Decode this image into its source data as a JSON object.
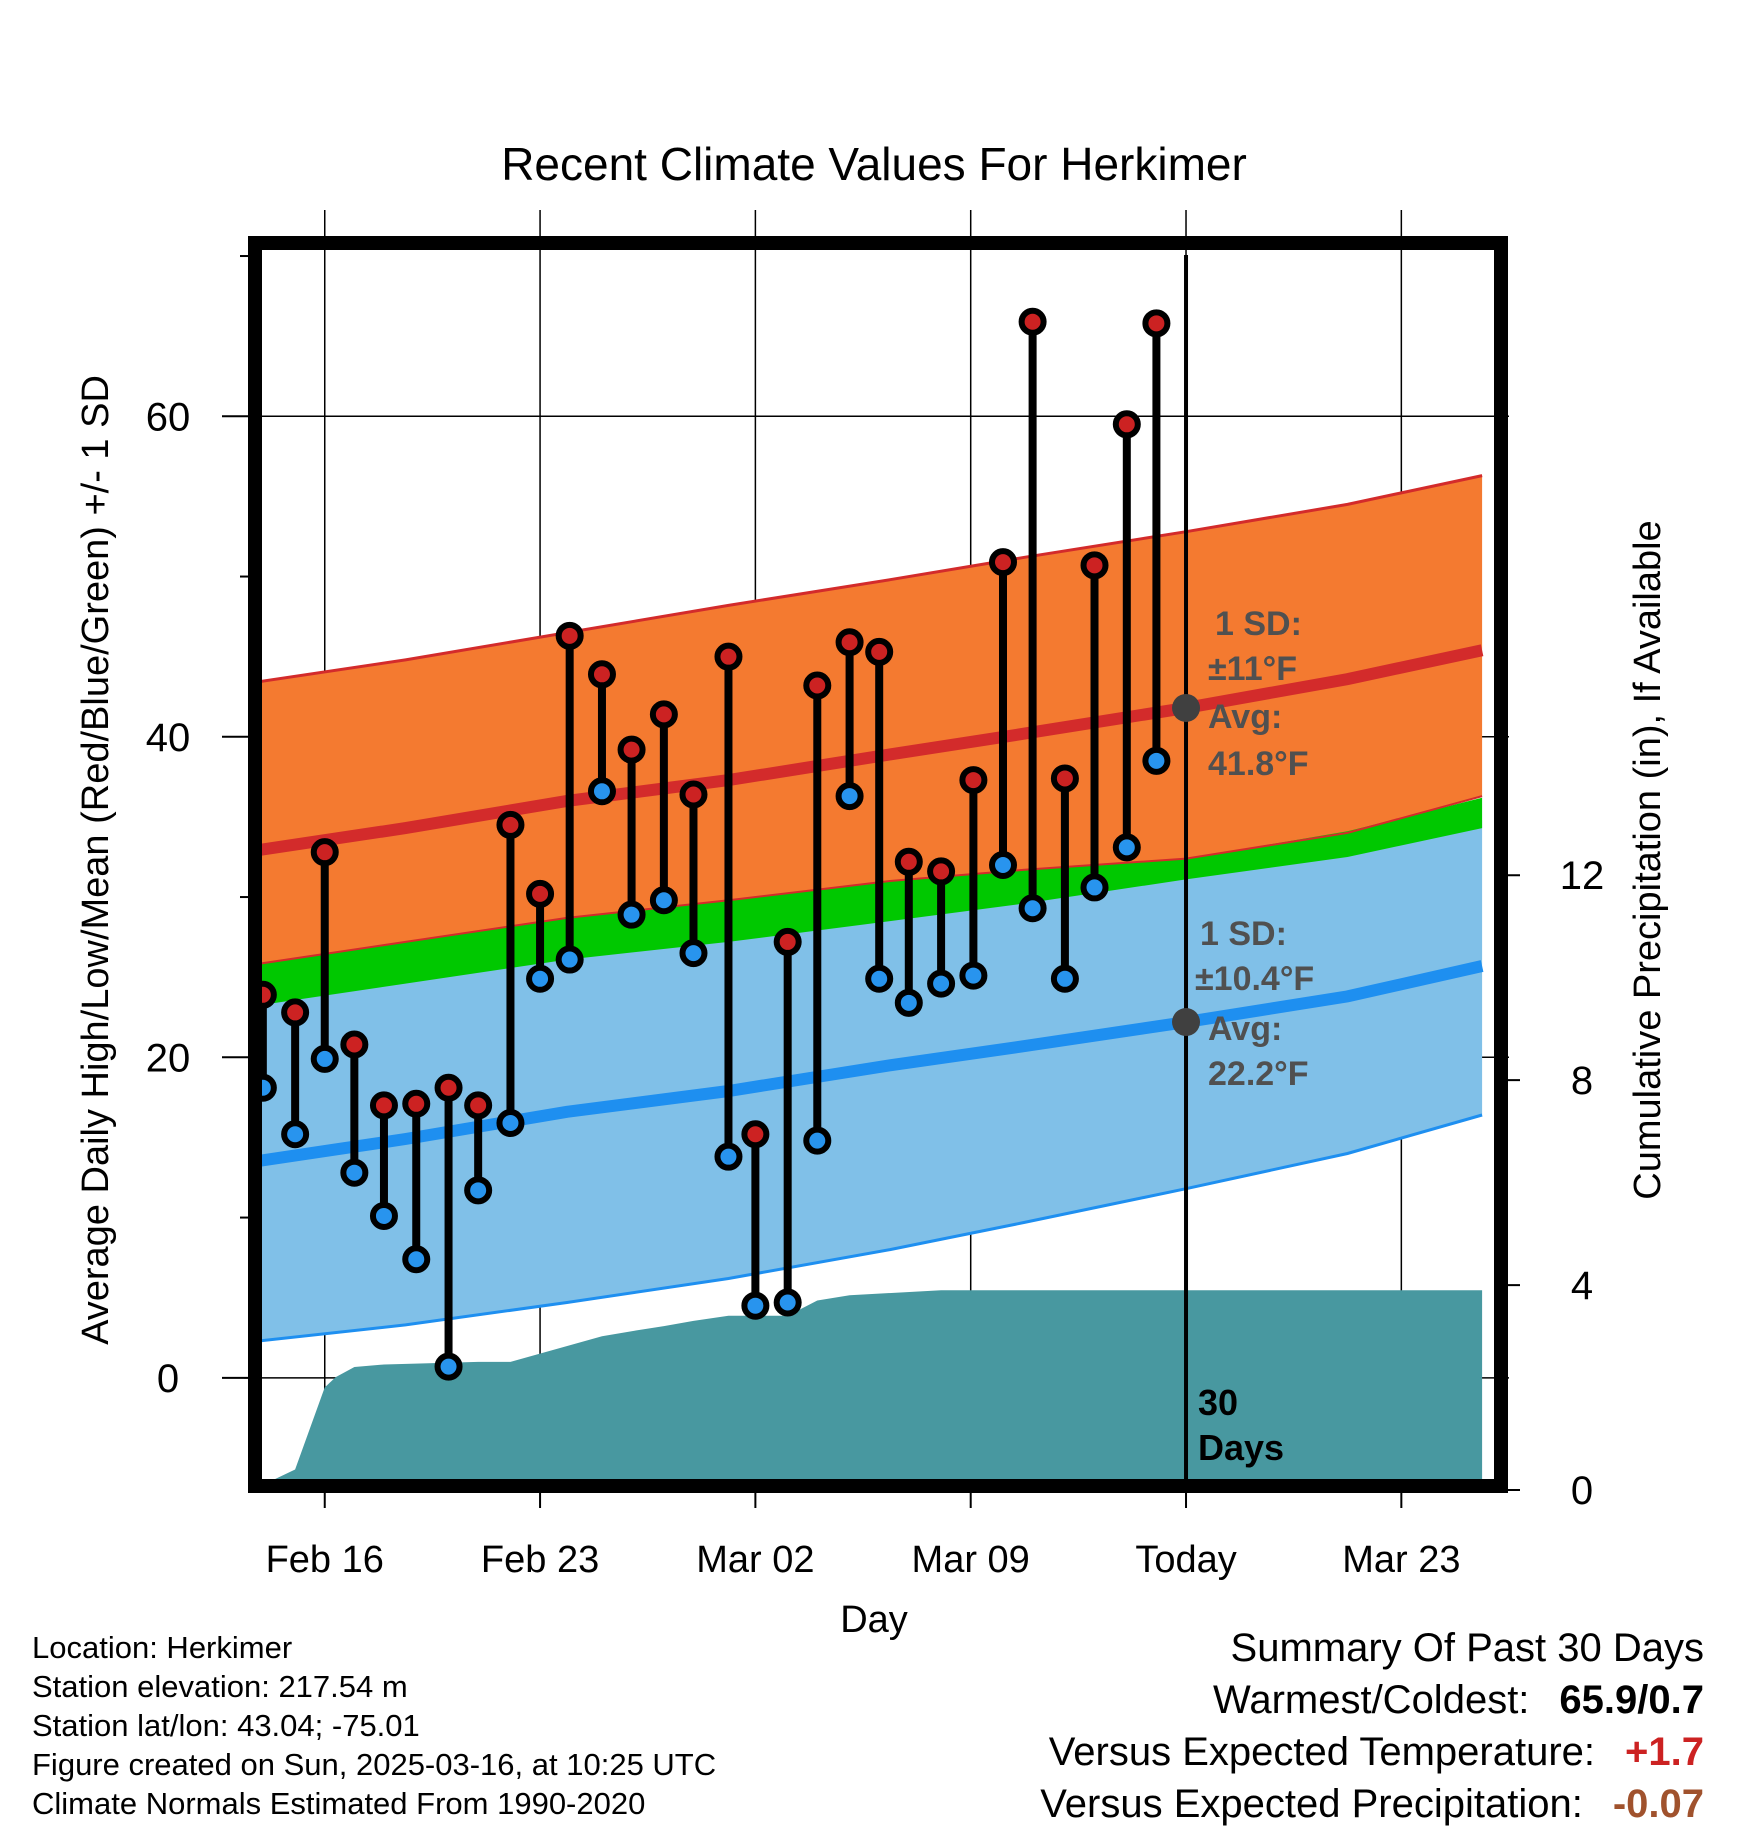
{
  "chart_data": {
    "type": "line",
    "title": "Recent Climate Values For Herkimer",
    "xlabel": "Day",
    "ylabel": "Average Daily High/Low/Mean (Red/Blue/Green) +/- 1 SD",
    "y2label": "Cumulative Precipitation (in), If Available",
    "xlim": [
      -3,
      44
    ],
    "ylim": [
      -7,
      71
    ],
    "y2lim": [
      0,
      24.4
    ],
    "yticks": [
      0,
      20,
      40,
      60
    ],
    "yticks_minor": [
      10,
      30,
      50,
      70
    ],
    "y2ticks": [
      0,
      4,
      8,
      12
    ],
    "xticks": [
      {
        "x": 0,
        "label": "Feb 16"
      },
      {
        "x": 8,
        "label": "Feb 23"
      },
      {
        "x": 16,
        "label": "Mar 02"
      },
      {
        "x": 24,
        "label": "Mar 09"
      },
      {
        "x": 32,
        "label": "Today"
      },
      {
        "x": 40,
        "label": "Mar 23"
      }
    ],
    "today_x": 32,
    "today_label_line1": "30",
    "today_label_line2": "Days",
    "normals": {
      "x": [
        -3,
        3,
        9,
        15,
        21,
        26,
        32,
        38,
        43
      ],
      "high_mean": [
        32.8,
        34.3,
        36.0,
        37.3,
        38.9,
        40.2,
        41.8,
        43.6,
        45.4
      ],
      "high_upper": [
        43.3,
        44.8,
        46.5,
        48.2,
        49.8,
        51.2,
        52.8,
        54.5,
        56.3
      ],
      "high_lower": [
        25.7,
        27.2,
        28.7,
        29.8,
        31.0,
        31.7,
        32.4,
        34.0,
        36.3
      ],
      "low_mean": [
        13.4,
        14.9,
        16.6,
        17.9,
        19.5,
        20.7,
        22.2,
        23.8,
        25.7
      ],
      "low_upper": [
        25.7,
        27.2,
        28.7,
        29.8,
        31.0,
        31.7,
        32.4,
        33.3,
        34.8
      ],
      "low_lower": [
        2.2,
        3.3,
        4.7,
        6.2,
        8.0,
        9.7,
        11.8,
        14.0,
        16.4
      ],
      "mean_upper": [
        25.7,
        27.2,
        28.7,
        29.8,
        31.0,
        31.7,
        32.4,
        34.1,
        36.2
      ],
      "mean_lower": [
        23.1,
        24.6,
        26.1,
        27.2,
        28.5,
        29.6,
        31.1,
        32.5,
        34.3
      ]
    },
    "observations": {
      "x": [
        -2.3,
        -1.1,
        0,
        1.1,
        2.2,
        3.4,
        4.6,
        5.7,
        6.9,
        8,
        9.1,
        10.3,
        11.4,
        12.6,
        13.7,
        15,
        16,
        17.2,
        18.3,
        19.5,
        20.6,
        21.7,
        22.9,
        24.1,
        25.2,
        26.3,
        27.5,
        28.6,
        29.8,
        30.9
      ],
      "high": [
        23.9,
        22.8,
        32.8,
        20.8,
        17.0,
        17.1,
        18.1,
        17.0,
        34.5,
        30.2,
        46.3,
        43.9,
        39.2,
        41.4,
        36.4,
        45.0,
        15.2,
        27.2,
        43.2,
        45.9,
        45.3,
        32.2,
        31.6,
        37.3,
        50.9,
        65.9,
        37.4,
        50.7,
        59.5,
        65.8
      ],
      "low": [
        18.1,
        15.2,
        19.9,
        12.8,
        10.1,
        7.4,
        0.7,
        11.7,
        15.9,
        24.9,
        26.1,
        36.6,
        28.9,
        29.8,
        26.5,
        13.8,
        4.5,
        4.7,
        14.8,
        36.3,
        24.9,
        23.4,
        24.6,
        25.1,
        32.0,
        29.3,
        24.9,
        30.6,
        33.1,
        38.5
      ]
    },
    "precipitation": {
      "x": [
        -2.3,
        -1.1,
        0,
        0.4,
        1.1,
        2.2,
        5.7,
        6.9,
        10.3,
        11.4,
        12.6,
        13.7,
        15,
        17.2,
        18.3,
        19.5,
        22.9,
        43
      ],
      "cumulative": [
        0.1,
        0.4,
        2.0,
        2.2,
        2.4,
        2.45,
        2.5,
        2.5,
        3.0,
        3.1,
        3.2,
        3.3,
        3.4,
        3.4,
        3.7,
        3.8,
        3.9,
        3.9
      ]
    },
    "annotations": {
      "high_sd": "1 SD:",
      "high_sd_value": "±11°F",
      "high_avg": "Avg:",
      "high_avg_value": "41.8°F",
      "low_sd": "1 SD:",
      "low_sd_value": "±10.4°F",
      "low_avg": "Avg:",
      "low_avg_value": "22.2°F"
    },
    "colors": {
      "high_band": "#f47a30",
      "high_line": "#d32b2b",
      "low_band": "#80c0e8",
      "low_line": "#1e8ff0",
      "mean_band": "#00c800",
      "overlap_band": "#961414",
      "precip": "#4898a0",
      "annotation": "#505050",
      "high_dot": "#cc2222",
      "low_dot": "#2894ee"
    }
  },
  "footer": {
    "location": "Location: Herkimer",
    "elevation": "Station elevation: 217.54 m",
    "latlon": "Station lat/lon: 43.04; -75.01",
    "created": "Figure created on Sun, 2025-03-16, at 10:25 UTC",
    "normals": "Climate Normals Estimated From 1990-2020"
  },
  "summary": {
    "title": "Summary Of Past 30 Days",
    "warmest_label": "Warmest/Coldest:",
    "warmest_value": "65.9/0.7",
    "temp_label": "Versus Expected Temperature:",
    "temp_value": "+1.7",
    "temp_color": "#cc2222",
    "precip_label": "Versus Expected Precipitation:",
    "precip_value": "-0.07",
    "precip_color": "#a0522d"
  }
}
